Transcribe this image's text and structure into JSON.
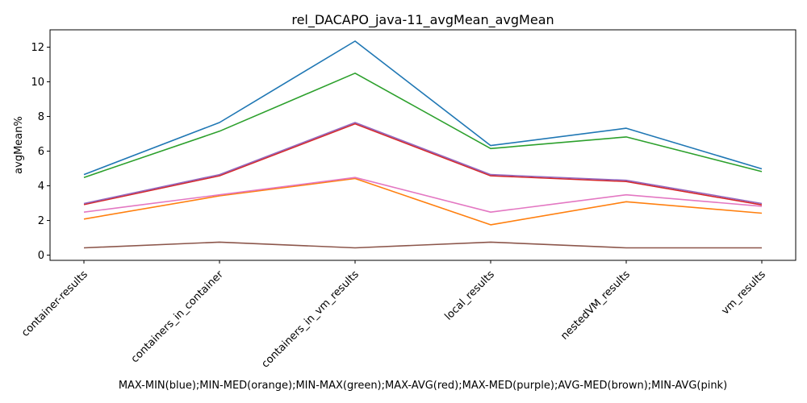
{
  "chart_data": {
    "type": "line",
    "title": "rel_DACAPO_java-11_avgMean_avgMean",
    "xlabel": "MAX-MIN(blue);MIN-MED(orange);MIN-MAX(green);MAX-AVG(red);MAX-MED(purple);AVG-MED(brown);MIN-AVG(pink)",
    "ylabel": "avgMean%",
    "categories": [
      "container-results",
      "containers_in_container",
      "containers_in_vm_results",
      "local_results",
      "nestedVM_results",
      "vm_results"
    ],
    "ylim": [
      -0.3,
      13.0
    ],
    "yticks": [
      0,
      2,
      4,
      6,
      8,
      10,
      12
    ],
    "grid": false,
    "series": [
      {
        "color": "#1f77b4",
        "values": [
          4.65,
          7.65,
          12.35,
          6.32,
          7.32,
          4.98
        ]
      },
      {
        "color": "#ff7f0e",
        "values": [
          2.08,
          3.42,
          4.42,
          1.75,
          3.08,
          2.42
        ]
      },
      {
        "color": "#2ca02c",
        "values": [
          4.48,
          7.15,
          10.5,
          6.15,
          6.82,
          4.82
        ]
      },
      {
        "color": "#d62728",
        "values": [
          2.92,
          4.58,
          7.58,
          4.58,
          4.25,
          2.9
        ]
      },
      {
        "color": "#9467bd",
        "values": [
          2.98,
          4.65,
          7.65,
          4.65,
          4.32,
          2.98
        ]
      },
      {
        "color": "#8c564b",
        "values": [
          0.42,
          0.75,
          0.42,
          0.75,
          0.42,
          0.42
        ]
      },
      {
        "color": "#e377c2",
        "values": [
          2.48,
          3.48,
          4.48,
          2.48,
          3.48,
          2.82
        ]
      }
    ]
  }
}
